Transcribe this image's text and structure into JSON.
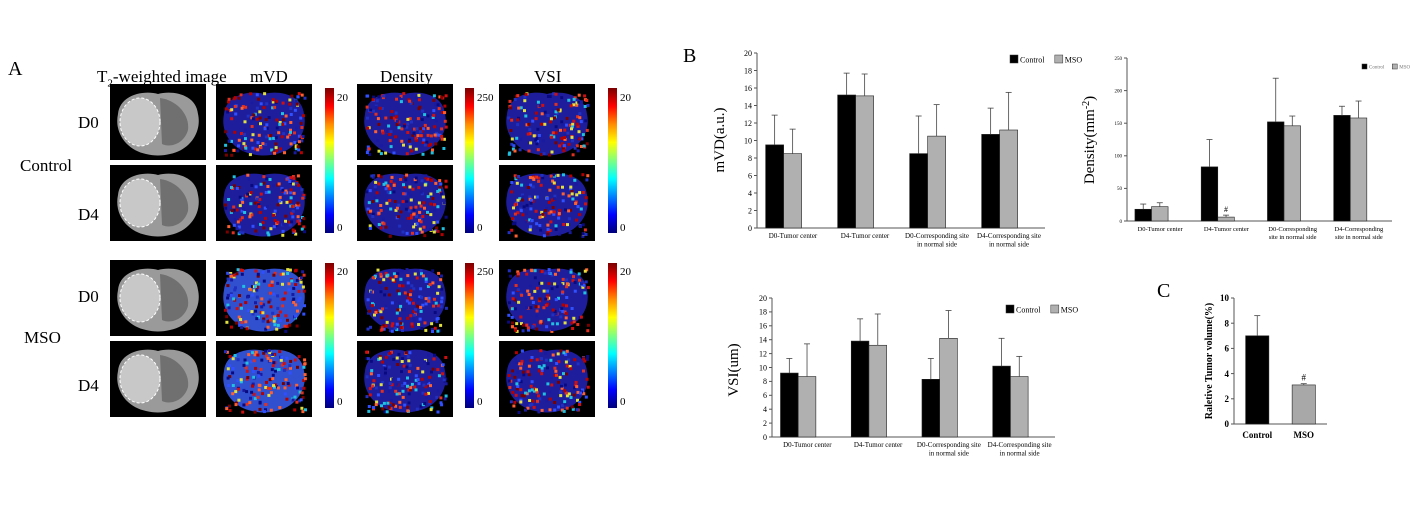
{
  "panel_a": {
    "letter": "A",
    "col_headers": {
      "t2": "T",
      "t2_sub": "2",
      "t2_rest": "-weighted image",
      "mvd": "mVD",
      "density": "Density",
      "vsi": "VSI"
    },
    "groups": [
      "Control",
      "MSO"
    ],
    "rows": [
      "D0",
      "D4",
      "D0",
      "D4"
    ],
    "colorbars": [
      {
        "max": "20",
        "min": "0"
      },
      {
        "max": "250",
        "min": "0"
      },
      {
        "max": "20",
        "min": "0"
      },
      {
        "max": "20",
        "min": "0"
      },
      {
        "max": "250",
        "min": "0"
      },
      {
        "max": "20",
        "min": "0"
      }
    ]
  },
  "panel_b": {
    "letter": "B"
  },
  "panel_c": {
    "letter": "C"
  },
  "chart_data": [
    {
      "id": "mvd",
      "type": "bar",
      "ylabel": "mVD(a.u.)",
      "ylim": [
        0,
        20
      ],
      "yticks": [
        "0",
        "2",
        "4",
        "6",
        "8",
        "10",
        "12",
        "14",
        "16",
        "18",
        "20"
      ],
      "categories": [
        [
          "D0-Tumor center"
        ],
        [
          "D4-Tumor center"
        ],
        [
          "D0-Corresponding site",
          "in normal side"
        ],
        [
          "D4-Corresponding site",
          "in normal side"
        ]
      ],
      "legend": [
        "Control",
        "MSO"
      ],
      "series": [
        {
          "name": "Control",
          "color": "#000000",
          "values": [
            9.5,
            15.2,
            8.5,
            10.7
          ],
          "errors": [
            3.4,
            2.5,
            4.3,
            3.0
          ]
        },
        {
          "name": "MSO",
          "color": "#b0b0b0",
          "values": [
            8.5,
            15.1,
            10.5,
            11.2
          ],
          "errors": [
            2.8,
            2.5,
            3.6,
            4.3
          ]
        }
      ],
      "annotations": []
    },
    {
      "id": "density",
      "type": "bar",
      "ylabel": "Density(mm",
      "ylabel_sup": "-2",
      "ylabel_end": ")",
      "ylim": [
        0,
        250
      ],
      "yticks": [
        "0",
        "50",
        "100",
        "150",
        "200",
        "250"
      ],
      "categories": [
        [
          "D0-Tumor center"
        ],
        [
          "D4-Tumor center"
        ],
        [
          "D0-Corresponding",
          "site in normal side"
        ],
        [
          "D4-Corresponding",
          "site in normal side"
        ]
      ],
      "legend": [
        "Control",
        "MSO"
      ],
      "series": [
        {
          "name": "Control",
          "color": "#000000",
          "values": [
            18,
            83,
            152,
            162
          ],
          "errors": [
            8,
            42,
            67,
            14
          ]
        },
        {
          "name": "MSO",
          "color": "#b0b0b0",
          "values": [
            22,
            6,
            146,
            158
          ],
          "errors": [
            6,
            3,
            15,
            26
          ]
        }
      ],
      "annotations": [
        {
          "category": 1,
          "series": 1,
          "text": "#"
        }
      ]
    },
    {
      "id": "vsi",
      "type": "bar",
      "ylabel": "VSI(um)",
      "ylim": [
        0,
        20
      ],
      "yticks": [
        "0",
        "2",
        "4",
        "6",
        "8",
        "10",
        "12",
        "14",
        "16",
        "18",
        "20"
      ],
      "categories": [
        [
          "D0-Tumor center"
        ],
        [
          "D4-Tumor center"
        ],
        [
          "D0-Corresponding site",
          "in normal side"
        ],
        [
          "D4-Corresponding site",
          "in normal side"
        ]
      ],
      "legend": [
        "Control",
        "MSO"
      ],
      "series": [
        {
          "name": "Control",
          "color": "#000000",
          "values": [
            9.2,
            13.8,
            8.3,
            10.2
          ],
          "errors": [
            2.1,
            3.2,
            3.0,
            4.0
          ]
        },
        {
          "name": "MSO",
          "color": "#b0b0b0",
          "values": [
            8.7,
            13.2,
            14.2,
            8.7
          ],
          "errors": [
            4.7,
            4.5,
            4.0,
            2.9
          ]
        }
      ],
      "annotations": []
    },
    {
      "id": "tumor",
      "type": "bar",
      "ylabel": "Raletive Tumor volume(%)",
      "ylim": [
        0,
        10
      ],
      "yticks": [
        "0",
        "2",
        "4",
        "6",
        "8",
        "10"
      ],
      "categories": [
        [
          "Control"
        ],
        [
          "MSO"
        ]
      ],
      "series": [
        {
          "name": "Tumor volume",
          "colors": [
            "#000000",
            "#a8a8a8"
          ],
          "values": [
            7.0,
            3.1
          ],
          "errors": [
            1.6,
            0.1
          ]
        }
      ],
      "annotations": [
        {
          "category": 1,
          "series": 0,
          "text": "#"
        }
      ]
    }
  ]
}
